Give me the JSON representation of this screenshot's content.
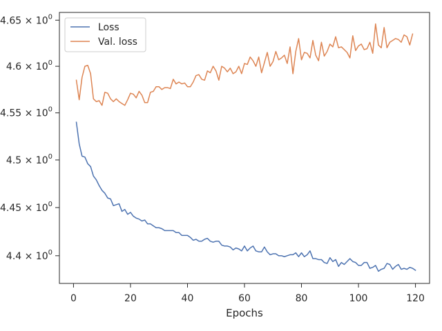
{
  "chart_data": {
    "type": "line",
    "title": "",
    "xlabel": "Epochs",
    "ylabel": "",
    "xlim": [
      -4.95,
      124.95
    ],
    "ylim": [
      4.3715,
      4.6585
    ],
    "xticks": [
      0,
      20,
      40,
      60,
      80,
      100,
      120
    ],
    "xtick_labels": [
      "0",
      "20",
      "40",
      "60",
      "80",
      "100",
      "120"
    ],
    "yticks": [
      4.4,
      4.45,
      4.5,
      4.55,
      4.6,
      4.65
    ],
    "ytick_labels": [
      {
        "mantissa": "4.4",
        "base": "10",
        "exp": "0"
      },
      {
        "mantissa": "4.45",
        "base": "10",
        "exp": "0"
      },
      {
        "mantissa": "4.5",
        "base": "10",
        "exp": "0"
      },
      {
        "mantissa": "4.55",
        "base": "10",
        "exp": "0"
      },
      {
        "mantissa": "4.6",
        "base": "10",
        "exp": "0"
      },
      {
        "mantissa": "4.65",
        "base": "10",
        "exp": "0"
      }
    ],
    "y_scale": "log",
    "grid": false,
    "legend_position": "top-left",
    "x_start": 1,
    "series": [
      {
        "name": "Loss",
        "color": "#4c72b0",
        "values": [
          4.54,
          4.517,
          4.504,
          4.503,
          4.496,
          4.493,
          4.483,
          4.479,
          4.473,
          4.468,
          4.465,
          4.46,
          4.459,
          4.452,
          4.453,
          4.454,
          4.446,
          4.448,
          4.443,
          4.445,
          4.441,
          4.439,
          4.438,
          4.436,
          4.437,
          4.433,
          4.433,
          4.431,
          4.429,
          4.429,
          4.428,
          4.426,
          4.426,
          4.426,
          4.426,
          4.424,
          4.424,
          4.421,
          4.421,
          4.421,
          4.419,
          4.416,
          4.417,
          4.415,
          4.415,
          4.417,
          4.418,
          4.415,
          4.414,
          4.415,
          4.415,
          4.411,
          4.41,
          4.41,
          4.409,
          4.406,
          4.408,
          4.407,
          4.405,
          4.41,
          4.405,
          4.408,
          4.41,
          4.405,
          4.404,
          4.404,
          4.409,
          4.404,
          4.401,
          4.402,
          4.402,
          4.4,
          4.4,
          4.399,
          4.4,
          4.401,
          4.401,
          4.403,
          4.399,
          4.403,
          4.399,
          4.401,
          4.405,
          4.397,
          4.397,
          4.396,
          4.396,
          4.393,
          4.392,
          4.398,
          4.394,
          4.396,
          4.389,
          4.393,
          4.391,
          4.394,
          4.397,
          4.394,
          4.393,
          4.39,
          4.39,
          4.393,
          4.393,
          4.387,
          4.388,
          4.39,
          4.384,
          4.386,
          4.387,
          4.392,
          4.391,
          4.386,
          4.389,
          4.391,
          4.386,
          4.387,
          4.386,
          4.388,
          4.387,
          4.385
        ]
      },
      {
        "name": "Val. loss",
        "color": "#dd8452",
        "values": [
          4.585,
          4.564,
          4.588,
          4.6,
          4.601,
          4.592,
          4.565,
          4.562,
          4.563,
          4.558,
          4.572,
          4.571,
          4.565,
          4.562,
          4.565,
          4.562,
          4.56,
          4.558,
          4.564,
          4.571,
          4.57,
          4.566,
          4.573,
          4.569,
          4.561,
          4.561,
          4.572,
          4.573,
          4.578,
          4.578,
          4.575,
          4.577,
          4.577,
          4.576,
          4.586,
          4.581,
          4.583,
          4.581,
          4.582,
          4.578,
          4.578,
          4.583,
          4.59,
          4.591,
          4.586,
          4.585,
          4.595,
          4.593,
          4.6,
          4.595,
          4.585,
          4.6,
          4.598,
          4.594,
          4.598,
          4.592,
          4.594,
          4.6,
          4.592,
          4.603,
          4.602,
          4.61,
          4.606,
          4.6,
          4.61,
          4.593,
          4.604,
          4.615,
          4.6,
          4.605,
          4.616,
          4.607,
          4.609,
          4.612,
          4.603,
          4.621,
          4.592,
          4.616,
          4.63,
          4.607,
          4.615,
          4.614,
          4.609,
          4.628,
          4.612,
          4.606,
          4.626,
          4.611,
          4.616,
          4.624,
          4.621,
          4.632,
          4.62,
          4.621,
          4.618,
          4.615,
          4.609,
          4.633,
          4.617,
          4.622,
          4.624,
          4.618,
          4.619,
          4.626,
          4.614,
          4.646,
          4.623,
          4.62,
          4.642,
          4.62,
          4.626,
          4.628,
          4.63,
          4.629,
          4.626,
          4.634,
          4.632,
          4.623,
          4.635
        ]
      }
    ]
  }
}
